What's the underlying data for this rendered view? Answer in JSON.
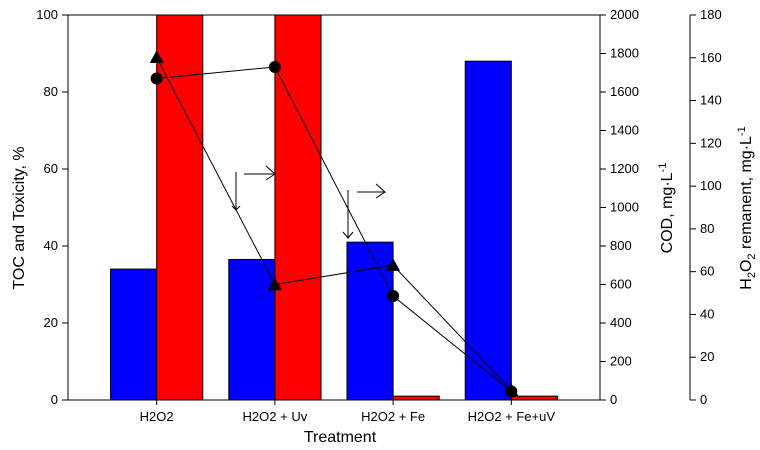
{
  "chart_data": {
    "type": "bar",
    "categories": [
      "H2O2",
      "H2O2 + Uv",
      "H2O2 + Fe",
      "H2O2 + Fe+uV"
    ],
    "xlabel": "Treatment",
    "y_left": {
      "label": "TOC and Toxicity, %",
      "ylim": [
        0,
        100
      ],
      "ticks": [
        0,
        20,
        40,
        60,
        80,
        100
      ]
    },
    "y_right1": {
      "label": "COD, mg·L",
      "label_sup": "-1",
      "ylim": [
        0,
        2000
      ],
      "ticks": [
        0,
        200,
        400,
        600,
        800,
        1000,
        1200,
        1400,
        1600,
        1800,
        2000
      ]
    },
    "y_right2": {
      "label_pre": "H",
      "label_sub": "2",
      "label_mid": "O",
      "label_sub2": "2",
      "label_post": " remanent, mg·L",
      "label_sup": "-1",
      "ylim": [
        0,
        180
      ],
      "ticks": [
        0,
        20,
        40,
        60,
        80,
        100,
        120,
        140,
        160,
        180
      ]
    },
    "bar_series": [
      {
        "values": [
          34,
          36.5,
          41,
          88
        ],
        "color": "#0000ff",
        "axis": "left"
      },
      {
        "values": [
          100,
          100,
          1,
          1
        ],
        "color": "#ff0000",
        "axis": "left"
      }
    ],
    "line_series": [
      {
        "marker": "triangle",
        "values": [
          1780,
          600,
          700,
          50
        ],
        "axis": "right1"
      },
      {
        "marker": "circle",
        "values": [
          1670,
          1730,
          540,
          45
        ],
        "axis": "right1"
      }
    ],
    "grid": false,
    "legend": "none"
  }
}
